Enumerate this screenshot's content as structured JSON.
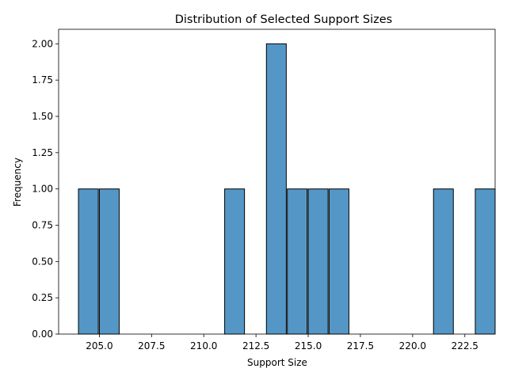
{
  "chart_data": {
    "type": "bar",
    "title": "Distribution of Selected Support Sizes",
    "xlabel": "Support Size",
    "ylabel": "Frequency",
    "xlim": [
      203.05,
      223.95
    ],
    "ylim": [
      0,
      2.1
    ],
    "x_ticks": [
      205.0,
      207.5,
      210.0,
      212.5,
      215.0,
      217.5,
      220.0,
      222.5
    ],
    "x_tick_labels": [
      "205.0",
      "207.5",
      "210.0",
      "212.5",
      "215.0",
      "217.5",
      "220.0",
      "222.5"
    ],
    "y_ticks": [
      0,
      0.25,
      0.5,
      0.75,
      1.0,
      1.25,
      1.5,
      1.75,
      2.0
    ],
    "y_tick_labels": [
      "0.00",
      "0.25",
      "0.50",
      "0.75",
      "1.00",
      "1.25",
      "1.50",
      "1.75",
      "2.00"
    ],
    "grid": false,
    "bin_edges": [
      204,
      205,
      206,
      207,
      208,
      209,
      210,
      211,
      212,
      213,
      214,
      215,
      216,
      217,
      218,
      219,
      220,
      221,
      222,
      223
    ],
    "bin_width": 0.95,
    "values": [
      1,
      1,
      0,
      0,
      0,
      0,
      0,
      1,
      0,
      2,
      1,
      1,
      1,
      0,
      0,
      0,
      0,
      1,
      0,
      1
    ],
    "bar_color": "#5497c7",
    "edge_color": "#000000"
  }
}
